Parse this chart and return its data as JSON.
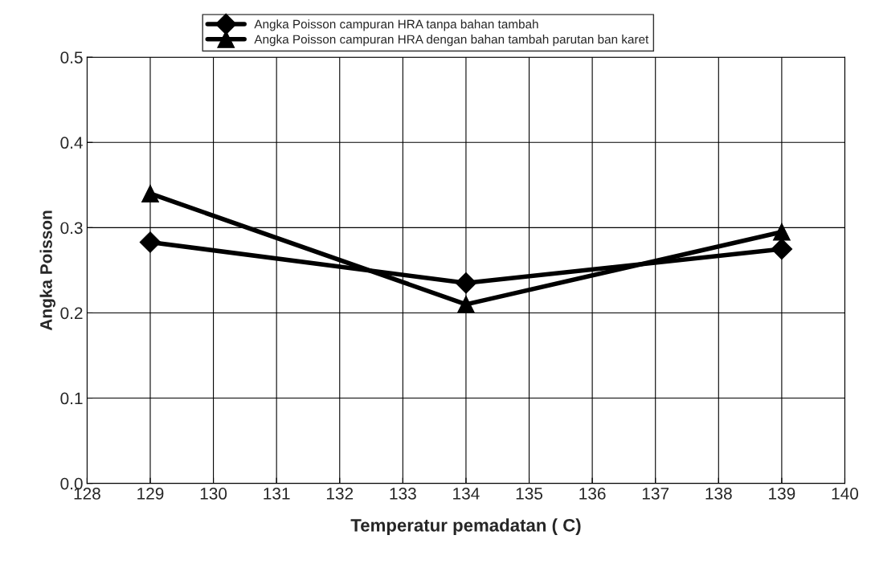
{
  "chart_data": {
    "type": "line",
    "xlabel": "Temperatur pemadatan ( C)",
    "ylabel": "Angka Poisson",
    "x": [
      129,
      134,
      139
    ],
    "series": [
      {
        "name": "Angka Poisson campuran HRA tanpa bahan tambah",
        "color": "#000000",
        "marker": "diamond",
        "values": [
          0.283,
          0.235,
          0.275
        ]
      },
      {
        "name": "Angka Poisson campuran HRA dengan bahan tambah parutan ban karet",
        "color": "#000000",
        "marker": "triangle",
        "values": [
          0.34,
          0.21,
          0.295
        ]
      }
    ],
    "xlim": [
      128,
      140
    ],
    "xticks": [
      128,
      129,
      130,
      131,
      132,
      133,
      134,
      135,
      136,
      137,
      138,
      139,
      140
    ],
    "ylim": [
      0,
      0.5
    ],
    "yticks": [
      {
        "value": 0,
        "label": "0.0"
      },
      {
        "value": 0.1,
        "label": "0.1"
      },
      {
        "value": 0.2,
        "label": "0.2"
      },
      {
        "value": 0.3,
        "label": "0.3"
      },
      {
        "value": 0.4,
        "label": "0.4"
      },
      {
        "value": 0.5,
        "label": "0.5"
      }
    ],
    "grid": true,
    "legend": "top",
    "line_style": "solid"
  }
}
